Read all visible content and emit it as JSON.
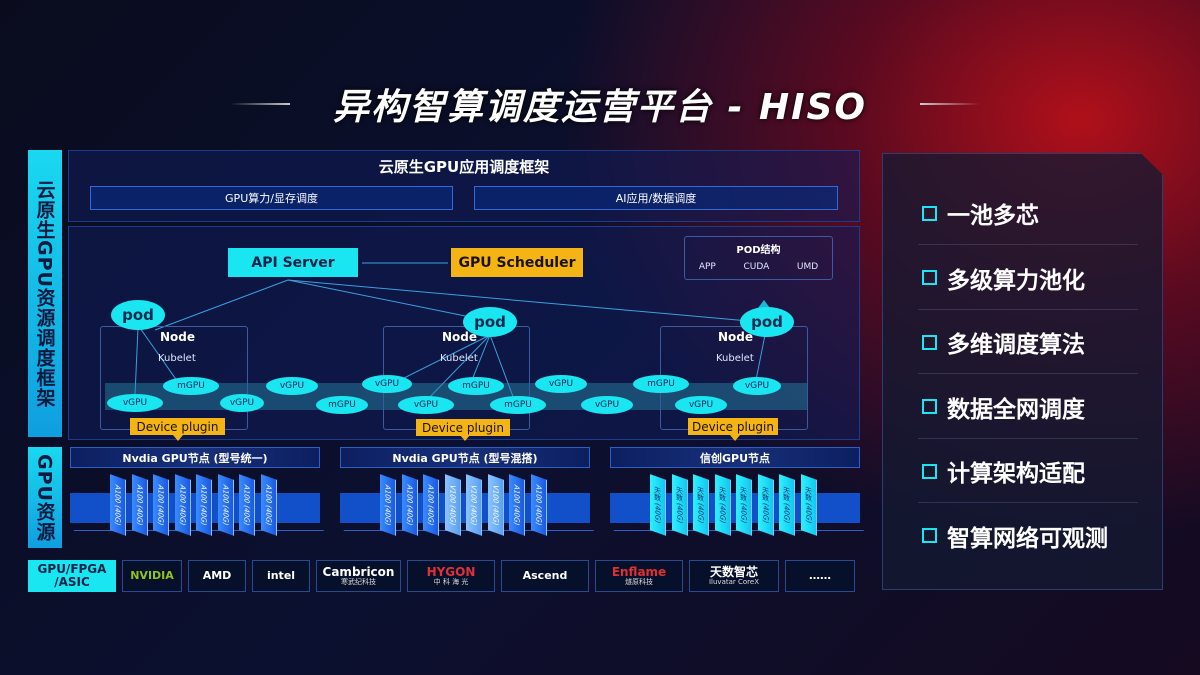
{
  "title": "异构智算调度运营平台 - HISO",
  "side_labels": {
    "framework": "云原生GPU资源调度框架",
    "resources": "GPU资源"
  },
  "framework": {
    "header": "云原生GPU应用调度框架",
    "sub_boxes": [
      "GPU算力/显存调度",
      "AI应用/数据调度"
    ],
    "api_server": "API Server",
    "gpu_scheduler": "GPU Scheduler",
    "pod_struct": {
      "title": "POD结构",
      "items": [
        "APP",
        "CUDA",
        "UMD"
      ]
    },
    "pod": "pod",
    "node": "Node",
    "kubelet": "Kubelet",
    "device_plugin": "Device plugin",
    "units": [
      "vGPU",
      "mGPU",
      "vGPU",
      "vGPU",
      "mGPU",
      "vGPU",
      "vGPU",
      "mGPU",
      "mGPU",
      "vGPU",
      "vGPU",
      "mGPU",
      "vGPU",
      "vGPU"
    ]
  },
  "gpu_nodes": [
    {
      "label": "Nvdia GPU节点 (型号统一)",
      "chips": [
        "A100 (40G)",
        "A100 (40G)",
        "A100 (40G)",
        "A100 (40G)",
        "A100 (40G)",
        "A100 (40G)",
        "A100 (40G)",
        "A100 (40G)"
      ]
    },
    {
      "label": "Nvdia GPU节点 (型号混搭)",
      "chips": [
        "A100 (40G)",
        "A100 (40G)",
        "A100 (40G)",
        "V100 (40G)",
        "V100 (40G)",
        "V100 (40G)",
        "A100 (40G)",
        "A100 (40G)"
      ]
    },
    {
      "label": "信创GPU节点",
      "chips": [
        "天数 (40G)",
        "天数 (40G)",
        "天数 (40G)",
        "天数 (40G)",
        "天数 (40G)",
        "天数 (40G)",
        "天数 (40G)",
        "天数 (40G)"
      ]
    }
  ],
  "vendors": {
    "label": "GPU/FPGA /ASIC",
    "items": [
      {
        "name": "NVIDIA"
      },
      {
        "name": "AMD"
      },
      {
        "name": "intel"
      },
      {
        "name": "Cambricon",
        "sub": "寒武纪科技"
      },
      {
        "name": "HYGON",
        "sub": "中 科 海 光"
      },
      {
        "name": "Ascend"
      },
      {
        "name": "Enflame",
        "sub": "燧原科技"
      },
      {
        "name": "天数智芯",
        "sub": "Iluvatar CoreX"
      },
      {
        "name": "……"
      }
    ]
  },
  "features": [
    "一池多芯",
    "多级算力池化",
    "多维调度算法",
    "数据全网调度",
    "计算架构适配",
    "智算网络可观测"
  ],
  "colors": {
    "cyan": "#19e6f0",
    "yellow": "#f5b416",
    "blue": "#1150c8",
    "red": "#b0101a"
  }
}
